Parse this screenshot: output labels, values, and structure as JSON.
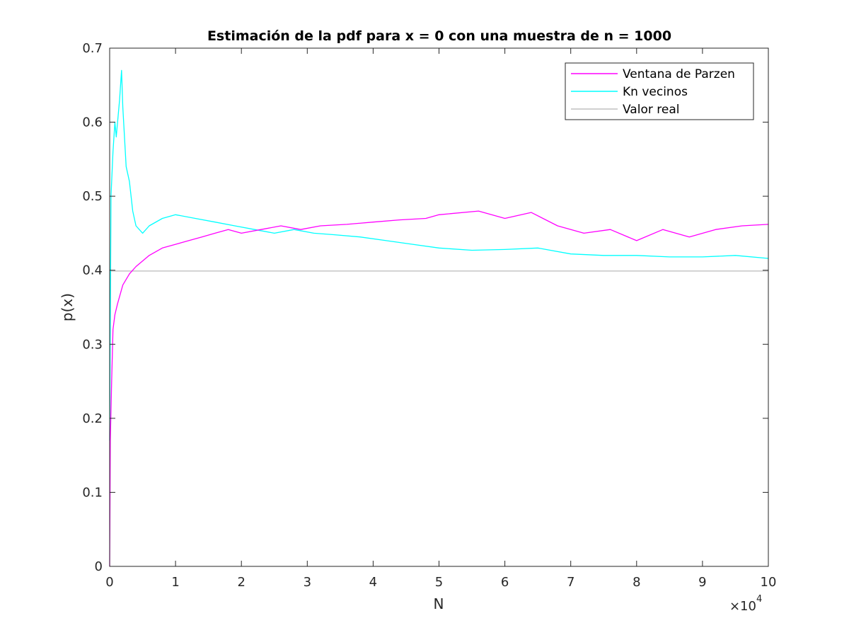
{
  "chart_data": {
    "type": "line",
    "title": "Estimación de la pdf para x = 0 con una muestra de n = 1000",
    "xlabel": "N",
    "ylabel": "p(x)",
    "xlim": [
      0,
      10
    ],
    "ylim": [
      0,
      0.7
    ],
    "x_exponent": {
      "times": "×",
      "base": "10",
      "power": "4"
    },
    "xticks": [
      "0",
      "1",
      "2",
      "3",
      "4",
      "5",
      "6",
      "7",
      "8",
      "9",
      "10"
    ],
    "yticks": [
      "0",
      "0.1",
      "0.2",
      "0.3",
      "0.4",
      "0.5",
      "0.6",
      "0.7"
    ],
    "x_units_note": "x values in units of 10^4",
    "legend_position": "top-right",
    "series": [
      {
        "name": "Ventana de Parzen",
        "color": "#ff00ff",
        "x": [
          0,
          0.01,
          0.03,
          0.05,
          0.08,
          0.12,
          0.2,
          0.3,
          0.4,
          0.6,
          0.8,
          1.0,
          1.2,
          1.4,
          1.6,
          1.8,
          2.0,
          2.3,
          2.6,
          2.9,
          3.2,
          3.6,
          4.0,
          4.4,
          4.8,
          5.0,
          5.6,
          6.0,
          6.4,
          6.8,
          7.2,
          7.6,
          8.0,
          8.4,
          8.8,
          9.2,
          9.6,
          10.0
        ],
        "values": [
          0.0,
          0.17,
          0.25,
          0.32,
          0.34,
          0.355,
          0.38,
          0.395,
          0.405,
          0.42,
          0.43,
          0.435,
          0.44,
          0.445,
          0.45,
          0.455,
          0.45,
          0.455,
          0.46,
          0.455,
          0.46,
          0.462,
          0.465,
          0.468,
          0.47,
          0.475,
          0.48,
          0.47,
          0.478,
          0.46,
          0.45,
          0.455,
          0.44,
          0.455,
          0.445,
          0.455,
          0.46,
          0.462
        ]
      },
      {
        "name": "Kn vecinos",
        "color": "#00ffff",
        "x": [
          0,
          0.02,
          0.05,
          0.08,
          0.1,
          0.15,
          0.18,
          0.2,
          0.25,
          0.3,
          0.35,
          0.4,
          0.5,
          0.6,
          0.8,
          1.0,
          1.3,
          1.6,
          1.9,
          2.2,
          2.5,
          2.8,
          3.1,
          3.4,
          3.8,
          4.2,
          4.6,
          5.0,
          5.5,
          6.0,
          6.5,
          7.0,
          7.5,
          8.0,
          8.5,
          9.0,
          9.5,
          10.0
        ],
        "values": [
          0.17,
          0.5,
          0.56,
          0.6,
          0.58,
          0.63,
          0.67,
          0.62,
          0.54,
          0.52,
          0.48,
          0.46,
          0.45,
          0.46,
          0.47,
          0.475,
          0.47,
          0.465,
          0.46,
          0.455,
          0.45,
          0.455,
          0.45,
          0.448,
          0.445,
          0.44,
          0.435,
          0.43,
          0.427,
          0.428,
          0.43,
          0.422,
          0.42,
          0.42,
          0.418,
          0.418,
          0.42,
          0.416
        ]
      },
      {
        "name": "Valor real",
        "color": "#c0c0c0",
        "x": [
          0,
          10
        ],
        "values": [
          0.399,
          0.399
        ]
      }
    ]
  }
}
